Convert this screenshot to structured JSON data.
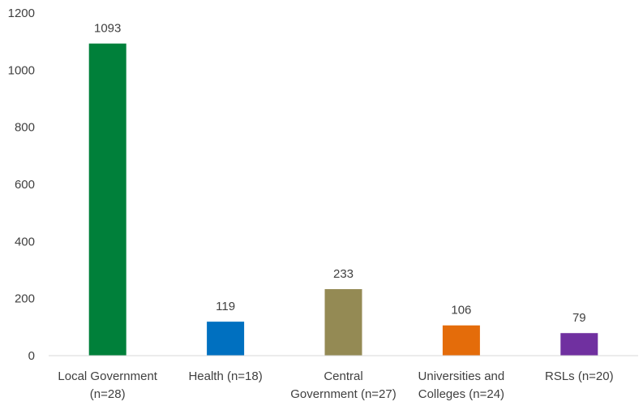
{
  "chart_data": {
    "type": "bar",
    "categories": [
      [
        "Local Government",
        "(n=28)"
      ],
      [
        "Health (n=18)"
      ],
      [
        "Central",
        "Government (n=27)"
      ],
      [
        "Universities and",
        "Colleges (n=24)"
      ],
      [
        "RSLs (n=20)"
      ]
    ],
    "values": [
      1093,
      119,
      233,
      106,
      79
    ],
    "colors": [
      "#00803a",
      "#0070c0",
      "#948a54",
      "#e46c0a",
      "#7030a0"
    ],
    "data_labels": [
      "1093",
      "119",
      "233",
      "106",
      "79"
    ],
    "y_ticks": [
      0,
      200,
      400,
      600,
      800,
      1000,
      1200
    ],
    "y_tick_labels": [
      "0",
      "200",
      "400",
      "600",
      "800",
      "1000",
      "1200"
    ],
    "ylim": [
      0,
      1200
    ],
    "title": "",
    "xlabel": "",
    "ylabel": "",
    "grid": false,
    "legend": "none"
  }
}
